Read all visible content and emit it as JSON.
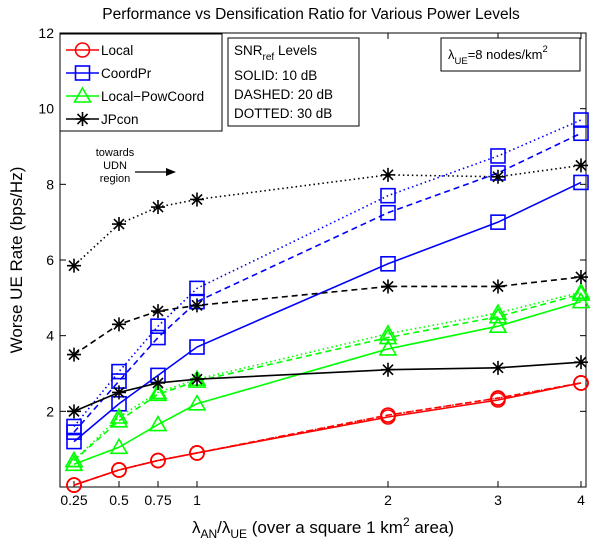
{
  "chart_data": {
    "type": "line",
    "title": "Performance vs Densification Ratio for Various Power Levels",
    "xlabel": {
      "base1": "λ",
      "sub1": "AN",
      "mid": "/λ",
      "sub2": "UE",
      "rest": " (over a square 1 km",
      "sup": "2",
      "end": " area)"
    },
    "ylabel": "Worse UE Rate (bps/Hz)",
    "xlim": [
      0.25,
      4
    ],
    "ylim": [
      0,
      12
    ],
    "x_ticks": [
      {
        "v": 0.25,
        "label": "0.25"
      },
      {
        "v": 0.5,
        "label": "0.5"
      },
      {
        "v": 0.75,
        "label": "0.75"
      },
      {
        "v": 1,
        "label": "1"
      },
      {
        "v": 2,
        "label": "2"
      },
      {
        "v": 3,
        "label": "3"
      },
      {
        "v": 4,
        "label": "4"
      }
    ],
    "y_ticks": [
      {
        "v": 2,
        "label": "2"
      },
      {
        "v": 4,
        "label": "4"
      },
      {
        "v": 6,
        "label": "6"
      },
      {
        "v": 8,
        "label": "8"
      },
      {
        "v": 10,
        "label": "10"
      },
      {
        "v": 12,
        "label": "12"
      }
    ],
    "grid": false,
    "x": [
      0.25,
      0.5,
      0.75,
      1,
      2,
      3,
      4
    ],
    "series": [
      {
        "name": "Local",
        "color": "#ff0000",
        "marker": "circle",
        "snr": "10 dB",
        "style": "solid",
        "values": [
          0.05,
          0.45,
          0.7,
          0.9,
          1.85,
          2.3,
          2.75
        ]
      },
      {
        "name": "Local",
        "color": "#ff0000",
        "marker": "circle",
        "snr": "20 dB",
        "style": "dashed",
        "values": [
          0.05,
          0.45,
          0.7,
          0.9,
          1.9,
          2.35,
          2.75
        ]
      },
      {
        "name": "Local",
        "color": "#ff0000",
        "marker": "circle",
        "snr": "30 dB",
        "style": "dotted",
        "values": [
          0.05,
          0.45,
          0.7,
          0.9,
          1.9,
          2.35,
          2.75
        ]
      },
      {
        "name": "CoordPr",
        "color": "#0000ff",
        "marker": "square",
        "snr": "10 dB",
        "style": "solid",
        "values": [
          1.2,
          2.2,
          2.95,
          3.7,
          5.9,
          7.0,
          8.05
        ]
      },
      {
        "name": "CoordPr",
        "color": "#0000ff",
        "marker": "square",
        "snr": "20 dB",
        "style": "dashed",
        "values": [
          1.45,
          2.8,
          3.95,
          4.9,
          7.25,
          8.3,
          9.35
        ]
      },
      {
        "name": "CoordPr",
        "color": "#0000ff",
        "marker": "square",
        "snr": "30 dB",
        "style": "dotted",
        "values": [
          1.6,
          3.05,
          4.25,
          5.25,
          7.7,
          8.75,
          9.7
        ]
      },
      {
        "name": "Local-PowCoord",
        "color": "#00ff00",
        "marker": "triangle",
        "snr": "10 dB",
        "style": "solid",
        "values": [
          0.6,
          1.05,
          1.65,
          2.2,
          3.65,
          4.25,
          4.9
        ]
      },
      {
        "name": "Local-PowCoord",
        "color": "#00ff00",
        "marker": "triangle",
        "snr": "20 dB",
        "style": "dashed",
        "values": [
          0.7,
          1.75,
          2.45,
          2.8,
          3.95,
          4.5,
          5.1
        ]
      },
      {
        "name": "Local-PowCoord",
        "color": "#00ff00",
        "marker": "triangle",
        "snr": "30 dB",
        "style": "dotted",
        "values": [
          0.7,
          1.85,
          2.5,
          2.85,
          4.05,
          4.6,
          5.15
        ]
      },
      {
        "name": "JPcon",
        "color": "#000000",
        "marker": "star",
        "snr": "10 dB",
        "style": "solid",
        "values": [
          2.0,
          2.5,
          2.75,
          2.85,
          3.1,
          3.15,
          3.3
        ]
      },
      {
        "name": "JPcon",
        "color": "#000000",
        "marker": "star",
        "snr": "20 dB",
        "style": "dashed",
        "values": [
          3.5,
          4.3,
          4.65,
          4.8,
          5.3,
          5.3,
          5.55
        ]
      },
      {
        "name": "JPcon",
        "color": "#000000",
        "marker": "star",
        "snr": "30 dB",
        "style": "dotted",
        "values": [
          5.85,
          6.95,
          7.4,
          7.6,
          8.25,
          8.2,
          8.5
        ]
      }
    ],
    "legend": {
      "placement": "top-left",
      "entries": [
        {
          "label": "Local",
          "color": "#ff0000",
          "marker": "circle"
        },
        {
          "label": "CoordPr",
          "color": "#0000ff",
          "marker": "square"
        },
        {
          "label": "Local−PowCoord",
          "color": "#00ff00",
          "marker": "triangle"
        },
        {
          "label": "JPcon",
          "color": "#000000",
          "marker": "star"
        }
      ]
    },
    "snr_box": {
      "title_base": "SNR",
      "title_sub": "ref",
      "title_rest": " Levels",
      "lines": [
        "SOLID: 10 dB",
        "DASHED: 20 dB",
        "DOTTED: 30 dB"
      ]
    },
    "density_box": {
      "base": "λ",
      "sub": "UE",
      "rest": "=8 nodes/km",
      "sup": "2"
    },
    "annotation": {
      "lines": [
        "towards",
        "UDN",
        "region"
      ]
    }
  }
}
